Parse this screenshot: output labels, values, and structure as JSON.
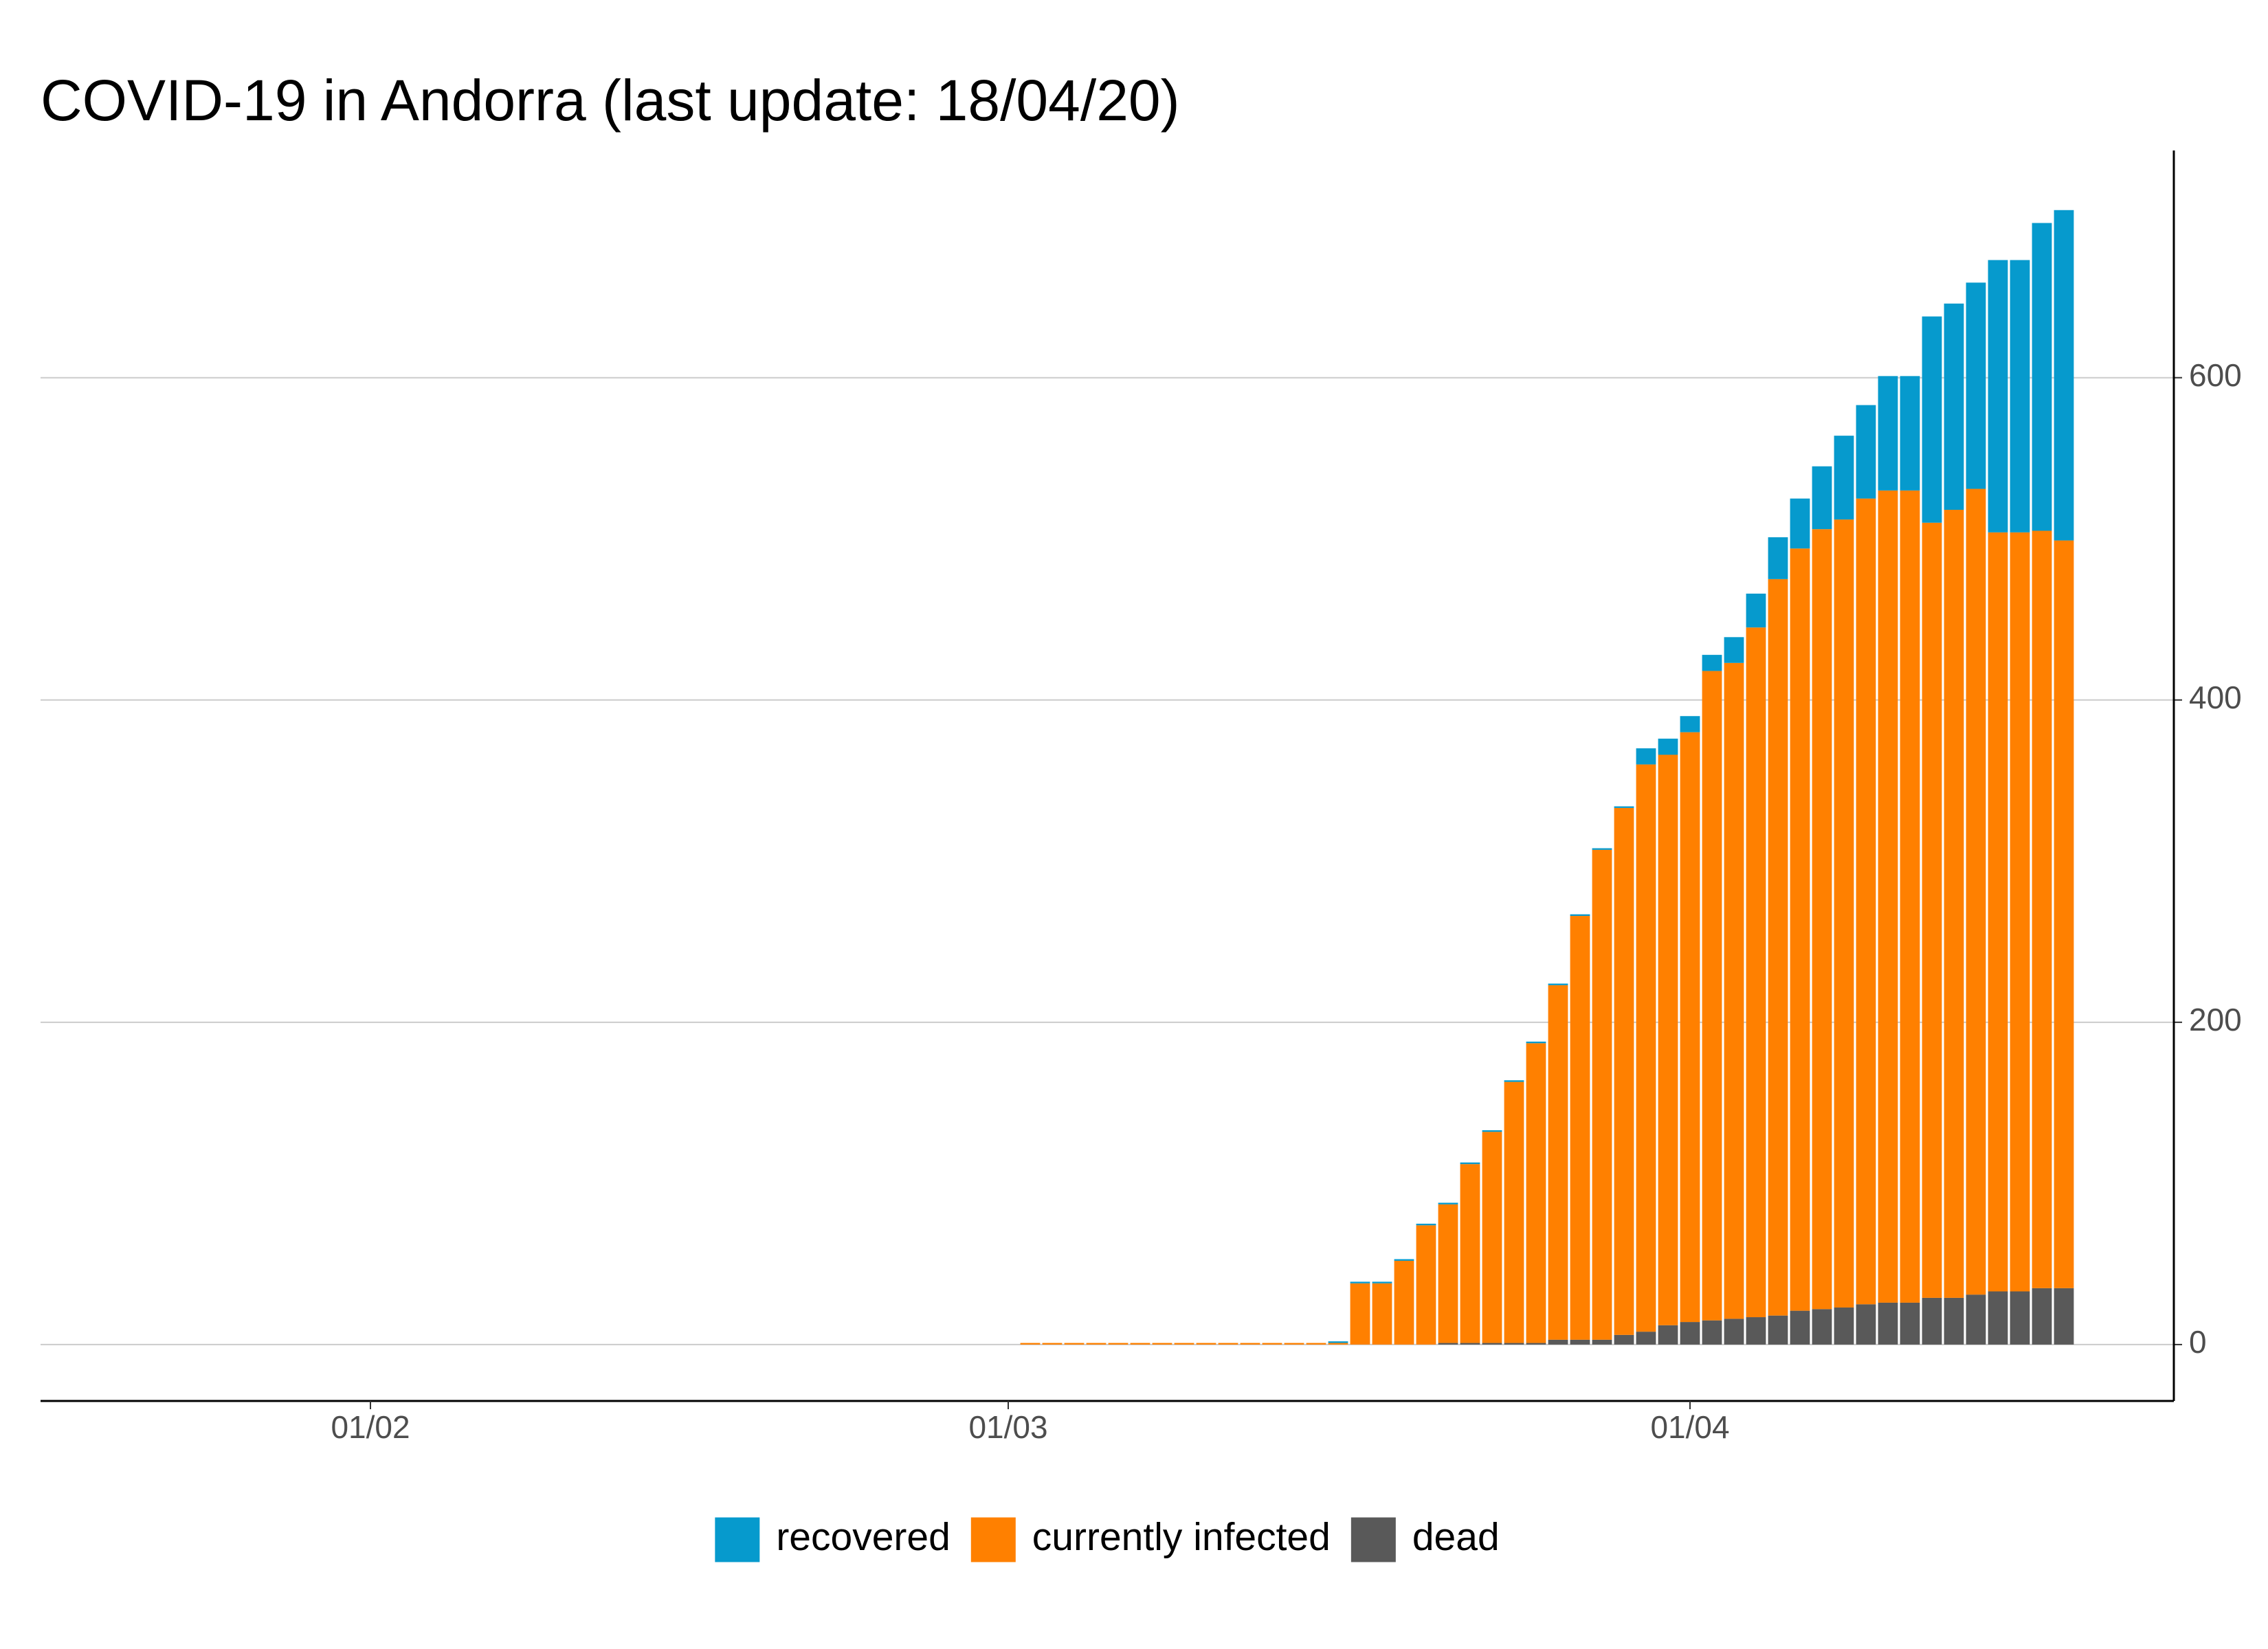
{
  "chart_data": {
    "type": "stacked-bar",
    "title": "COVID-19 in Andorra (last update: 18/04/20)",
    "x": [
      "02/03",
      "03/03",
      "04/03",
      "05/03",
      "06/03",
      "07/03",
      "08/03",
      "09/03",
      "10/03",
      "11/03",
      "12/03",
      "13/03",
      "14/03",
      "15/03",
      "16/03",
      "17/03",
      "18/03",
      "19/03",
      "20/03",
      "21/03",
      "22/03",
      "23/03",
      "24/03",
      "25/03",
      "26/03",
      "27/03",
      "28/03",
      "29/03",
      "30/03",
      "31/03",
      "01/04",
      "02/04",
      "03/04",
      "04/04",
      "05/04",
      "06/04",
      "07/04",
      "08/04",
      "09/04",
      "10/04",
      "11/04",
      "12/04",
      "13/04",
      "14/04",
      "15/04",
      "16/04",
      "17/04",
      "18/04"
    ],
    "series": [
      {
        "name": "recovered",
        "color": "#069acd",
        "values": [
          0,
          0,
          0,
          0,
          0,
          0,
          0,
          0,
          0,
          0,
          0,
          0,
          0,
          0,
          1,
          1,
          1,
          1,
          1,
          1,
          1,
          1,
          1,
          1,
          1,
          1,
          1,
          1,
          10,
          10,
          10,
          10,
          16,
          21,
          26,
          31,
          39,
          52,
          58,
          71,
          71,
          128,
          128,
          128,
          169,
          169,
          191,
          205
        ]
      },
      {
        "name": "currently infected",
        "color": "#ff8000",
        "values": [
          1,
          1,
          1,
          1,
          1,
          1,
          1,
          1,
          1,
          1,
          1,
          1,
          1,
          1,
          1,
          38,
          38,
          52,
          74,
          86,
          111,
          131,
          162,
          186,
          220,
          263,
          304,
          327,
          352,
          354,
          366,
          403,
          407,
          428,
          457,
          473,
          484,
          489,
          500,
          504,
          504,
          481,
          489,
          500,
          471,
          471,
          470,
          464
        ]
      },
      {
        "name": "dead",
        "color": "#595959",
        "values": [
          0,
          0,
          0,
          0,
          0,
          0,
          0,
          0,
          0,
          0,
          0,
          0,
          0,
          0,
          0,
          0,
          0,
          0,
          0,
          1,
          1,
          1,
          1,
          1,
          3,
          3,
          3,
          6,
          8,
          12,
          14,
          15,
          16,
          17,
          18,
          21,
          22,
          23,
          25,
          26,
          26,
          29,
          29,
          31,
          33,
          33,
          35,
          35
        ]
      }
    ],
    "xlim": [
      "17/01",
      "23/04"
    ],
    "xticks": [
      "01/02",
      "01/03",
      "01/04"
    ],
    "ylim": [
      -35,
      741
    ],
    "yticks": [
      0,
      200,
      400,
      600
    ],
    "y_axis_side": "right",
    "grid": true,
    "legend": "bottom"
  }
}
